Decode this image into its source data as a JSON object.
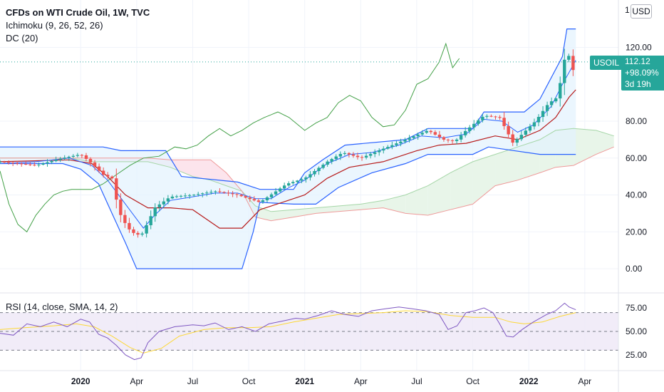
{
  "legend": {
    "title": "CFDs on WTI Crude Oil, 1W, TVC",
    "ichimoku": "Ichimoku (9, 26, 52, 26)",
    "donchian": "DC (20)",
    "rsi": "RSI (14, close, SMA, 14, 2)"
  },
  "price_scale": {
    "currency": "USD",
    "truncated_top": "1"
  },
  "last_price": {
    "symbol": "USOIL",
    "price": "112.12",
    "change": "+98.09%",
    "countdown": "3d 19h"
  },
  "colors": {
    "up": "#26a69a",
    "down": "#ef5350",
    "donchian": "#2962ff",
    "donchian_fill": "#e3f2fd",
    "tenkan": "#2962ff",
    "kijun": "#b71c1c",
    "chikou": "#43a047",
    "span_a": "#a5d6a7",
    "span_b": "#ef9a9a",
    "cloud_green": "#e8f5e9",
    "cloud_red": "#fce4ec",
    "rsi_line": "#7e57c2",
    "rsi_sma": "#fdd835",
    "rsi_band": "#ede7f6"
  },
  "chart_data": [
    {
      "type": "candlestick",
      "title": "CFDs on WTI Crude Oil, 1W, TVC",
      "ylim": [
        -8,
        137
      ],
      "yticks": [
        "0.00",
        "20.00",
        "40.00",
        "60.00",
        "80.00",
        "120.00"
      ],
      "xticks": [
        {
          "label": "2020",
          "t": 2020.0,
          "bold": true
        },
        {
          "label": "Apr",
          "t": 2020.25,
          "bold": false
        },
        {
          "label": "Jul",
          "t": 2020.5,
          "bold": false
        },
        {
          "label": "Oct",
          "t": 2020.75,
          "bold": false
        },
        {
          "label": "2021",
          "t": 2021.0,
          "bold": true
        },
        {
          "label": "Apr",
          "t": 2021.25,
          "bold": false
        },
        {
          "label": "Jul",
          "t": 2021.5,
          "bold": false
        },
        {
          "label": "Oct",
          "t": 2021.75,
          "bold": false
        },
        {
          "label": "2022",
          "t": 2022.0,
          "bold": true
        },
        {
          "label": "Apr",
          "t": 2022.25,
          "bold": false
        }
      ],
      "xlim": [
        2019.64,
        2022.4
      ],
      "price_line": 112.12,
      "close_anchors": [
        [
          2019.64,
          58
        ],
        [
          2019.8,
          56
        ],
        [
          2019.92,
          60
        ],
        [
          2020.0,
          62
        ],
        [
          2020.05,
          57
        ],
        [
          2020.1,
          51
        ],
        [
          2020.14,
          49
        ],
        [
          2020.17,
          31
        ],
        [
          2020.21,
          22
        ],
        [
          2020.24,
          19
        ],
        [
          2020.27,
          18
        ],
        [
          2020.3,
          25
        ],
        [
          2020.33,
          33
        ],
        [
          2020.4,
          39
        ],
        [
          2020.5,
          40
        ],
        [
          2020.6,
          42
        ],
        [
          2020.7,
          40
        ],
        [
          2020.75,
          38
        ],
        [
          2020.8,
          36
        ],
        [
          2020.86,
          41
        ],
        [
          2020.92,
          46
        ],
        [
          2021.0,
          49
        ],
        [
          2021.1,
          58
        ],
        [
          2021.17,
          63
        ],
        [
          2021.25,
          60
        ],
        [
          2021.35,
          65
        ],
        [
          2021.45,
          70
        ],
        [
          2021.55,
          75
        ],
        [
          2021.62,
          70
        ],
        [
          2021.67,
          69
        ],
        [
          2021.72,
          75
        ],
        [
          2021.8,
          83
        ],
        [
          2021.87,
          82
        ],
        [
          2021.9,
          75
        ],
        [
          2021.93,
          68
        ],
        [
          2021.97,
          73
        ],
        [
          2022.03,
          80
        ],
        [
          2022.09,
          90
        ],
        [
          2022.12,
          92
        ],
        [
          2022.15,
          105
        ],
        [
          2022.17,
          123
        ],
        [
          2022.19,
          105
        ],
        [
          2022.21,
          112.12
        ]
      ],
      "donchian_upper": [
        [
          2019.64,
          66
        ],
        [
          2019.92,
          66
        ],
        [
          2020.0,
          66
        ],
        [
          2020.1,
          66
        ],
        [
          2020.18,
          64
        ],
        [
          2020.38,
          64
        ],
        [
          2020.45,
          50
        ],
        [
          2020.7,
          47
        ],
        [
          2020.8,
          43
        ],
        [
          2020.95,
          43
        ],
        [
          2021.0,
          52
        ],
        [
          2021.08,
          59
        ],
        [
          2021.18,
          67
        ],
        [
          2021.45,
          70
        ],
        [
          2021.55,
          76
        ],
        [
          2021.75,
          76
        ],
        [
          2021.8,
          85
        ],
        [
          2021.98,
          85
        ],
        [
          2022.05,
          92
        ],
        [
          2022.15,
          115
        ],
        [
          2022.17,
          130
        ],
        [
          2022.21,
          130
        ]
      ],
      "donchian_lower": [
        [
          2019.64,
          57
        ],
        [
          2019.92,
          57
        ],
        [
          2020.0,
          54
        ],
        [
          2020.08,
          46
        ],
        [
          2020.14,
          30
        ],
        [
          2020.2,
          14
        ],
        [
          2020.25,
          0
        ],
        [
          2020.72,
          0
        ],
        [
          2020.77,
          20
        ],
        [
          2020.8,
          36
        ],
        [
          2020.95,
          35
        ],
        [
          2021.05,
          35
        ],
        [
          2021.15,
          44
        ],
        [
          2021.3,
          52
        ],
        [
          2021.45,
          57
        ],
        [
          2021.55,
          62
        ],
        [
          2021.75,
          62
        ],
        [
          2021.82,
          66
        ],
        [
          2022.05,
          62
        ],
        [
          2022.21,
          62
        ]
      ],
      "tenkan": [
        [
          2019.64,
          57
        ],
        [
          2019.8,
          58
        ],
        [
          2019.95,
          60
        ],
        [
          2020.05,
          56
        ],
        [
          2020.12,
          48
        ],
        [
          2020.2,
          35
        ],
        [
          2020.28,
          22
        ],
        [
          2020.33,
          29
        ],
        [
          2020.4,
          37
        ],
        [
          2020.5,
          39
        ],
        [
          2020.6,
          41
        ],
        [
          2020.7,
          41
        ],
        [
          2020.78,
          38
        ],
        [
          2020.85,
          38
        ],
        [
          2020.93,
          44
        ],
        [
          2021.0,
          48
        ],
        [
          2021.1,
          57
        ],
        [
          2021.2,
          62
        ],
        [
          2021.3,
          63
        ],
        [
          2021.42,
          67
        ],
        [
          2021.52,
          72
        ],
        [
          2021.62,
          71
        ],
        [
          2021.72,
          73
        ],
        [
          2021.8,
          81
        ],
        [
          2021.88,
          80
        ],
        [
          2021.95,
          74
        ],
        [
          2022.02,
          78
        ],
        [
          2022.1,
          88
        ],
        [
          2022.15,
          100
        ],
        [
          2022.21,
          113
        ]
      ],
      "kijun": [
        [
          2019.64,
          58
        ],
        [
          2019.95,
          59
        ],
        [
          2020.05,
          57
        ],
        [
          2020.12,
          50
        ],
        [
          2020.2,
          40
        ],
        [
          2020.3,
          33
        ],
        [
          2020.4,
          33
        ],
        [
          2020.5,
          32
        ],
        [
          2020.62,
          22
        ],
        [
          2020.72,
          22
        ],
        [
          2020.8,
          32
        ],
        [
          2020.9,
          36
        ],
        [
          2021.0,
          40
        ],
        [
          2021.1,
          49
        ],
        [
          2021.2,
          55
        ],
        [
          2021.35,
          58
        ],
        [
          2021.5,
          64
        ],
        [
          2021.6,
          67
        ],
        [
          2021.72,
          68
        ],
        [
          2021.85,
          72
        ],
        [
          2021.95,
          70
        ],
        [
          2022.05,
          75
        ],
        [
          2022.12,
          82
        ],
        [
          2022.18,
          93
        ],
        [
          2022.21,
          97
        ]
      ],
      "chikou": [
        [
          2019.64,
          53
        ],
        [
          2019.68,
          35
        ],
        [
          2019.72,
          24
        ],
        [
          2019.76,
          20
        ],
        [
          2019.8,
          29
        ],
        [
          2019.84,
          35
        ],
        [
          2019.88,
          40
        ],
        [
          2019.92,
          42
        ],
        [
          2019.96,
          43
        ],
        [
          2020.0,
          43
        ],
        [
          2020.05,
          43
        ],
        [
          2020.1,
          46
        ],
        [
          2020.16,
          51
        ],
        [
          2020.22,
          56
        ],
        [
          2020.28,
          60
        ],
        [
          2020.35,
          61
        ],
        [
          2020.42,
          66
        ],
        [
          2020.47,
          65
        ],
        [
          2020.52,
          67
        ],
        [
          2020.57,
          72
        ],
        [
          2020.62,
          76
        ],
        [
          2020.67,
          72
        ],
        [
          2020.72,
          75
        ],
        [
          2020.77,
          79
        ],
        [
          2020.82,
          82
        ],
        [
          2020.88,
          85
        ],
        [
          2020.93,
          82
        ],
        [
          2021.0,
          75
        ],
        [
          2021.05,
          79
        ],
        [
          2021.1,
          82
        ],
        [
          2021.15,
          90
        ],
        [
          2021.2,
          94
        ],
        [
          2021.25,
          91
        ],
        [
          2021.3,
          82
        ],
        [
          2021.35,
          77
        ],
        [
          2021.4,
          78
        ],
        [
          2021.45,
          86
        ],
        [
          2021.5,
          100
        ],
        [
          2021.55,
          103
        ],
        [
          2021.6,
          112
        ],
        [
          2021.63,
          122
        ],
        [
          2021.66,
          109
        ],
        [
          2021.69,
          114
        ]
      ],
      "span_a": [
        [
          2019.64,
          60
        ],
        [
          2019.8,
          60
        ],
        [
          2019.95,
          60
        ],
        [
          2020.05,
          58
        ],
        [
          2020.18,
          58
        ],
        [
          2020.3,
          58
        ],
        [
          2020.4,
          55
        ],
        [
          2020.5,
          50
        ],
        [
          2020.58,
          48
        ],
        [
          2020.65,
          45
        ],
        [
          2020.72,
          42
        ],
        [
          2020.78,
          34
        ],
        [
          2020.85,
          31
        ],
        [
          2020.95,
          32
        ],
        [
          2021.05,
          33
        ],
        [
          2021.15,
          34
        ],
        [
          2021.25,
          35
        ],
        [
          2021.35,
          37
        ],
        [
          2021.45,
          40
        ],
        [
          2021.55,
          45
        ],
        [
          2021.65,
          52
        ],
        [
          2021.75,
          58
        ],
        [
          2021.85,
          62
        ],
        [
          2021.95,
          66
        ],
        [
          2022.05,
          70
        ],
        [
          2022.12,
          75
        ],
        [
          2022.2,
          76
        ],
        [
          2022.3,
          75
        ],
        [
          2022.38,
          72
        ]
      ],
      "span_b": [
        [
          2019.64,
          60
        ],
        [
          2019.8,
          60
        ],
        [
          2019.95,
          60
        ],
        [
          2020.05,
          60
        ],
        [
          2020.18,
          60
        ],
        [
          2020.3,
          60
        ],
        [
          2020.4,
          59
        ],
        [
          2020.5,
          59
        ],
        [
          2020.58,
          59
        ],
        [
          2020.65,
          52
        ],
        [
          2020.72,
          42
        ],
        [
          2020.78,
          28
        ],
        [
          2020.85,
          26
        ],
        [
          2020.95,
          28
        ],
        [
          2021.05,
          30
        ],
        [
          2021.15,
          31
        ],
        [
          2021.25,
          32
        ],
        [
          2021.35,
          33
        ],
        [
          2021.45,
          30
        ],
        [
          2021.55,
          29
        ],
        [
          2021.65,
          32
        ],
        [
          2021.75,
          35
        ],
        [
          2021.85,
          45
        ],
        [
          2021.95,
          48
        ],
        [
          2022.05,
          52
        ],
        [
          2022.12,
          55
        ],
        [
          2022.2,
          56
        ],
        [
          2022.3,
          62
        ],
        [
          2022.38,
          66
        ]
      ]
    },
    {
      "type": "line",
      "title": "RSI (14, close, SMA, 14, 2)",
      "ylim": [
        12,
        88
      ],
      "yticks": [
        "25.00",
        "50.00",
        "75.00"
      ],
      "bands": [
        30,
        50,
        70
      ],
      "rsi": [
        [
          2019.64,
          48
        ],
        [
          2019.7,
          46
        ],
        [
          2019.76,
          58
        ],
        [
          2019.82,
          55
        ],
        [
          2019.88,
          60
        ],
        [
          2019.94,
          55
        ],
        [
          2020.0,
          63
        ],
        [
          2020.04,
          60
        ],
        [
          2020.08,
          47
        ],
        [
          2020.12,
          43
        ],
        [
          2020.16,
          35
        ],
        [
          2020.2,
          25
        ],
        [
          2020.24,
          20
        ],
        [
          2020.27,
          22
        ],
        [
          2020.3,
          38
        ],
        [
          2020.35,
          50
        ],
        [
          2020.42,
          55
        ],
        [
          2020.5,
          57
        ],
        [
          2020.55,
          56
        ],
        [
          2020.6,
          59
        ],
        [
          2020.66,
          52
        ],
        [
          2020.72,
          55
        ],
        [
          2020.78,
          50
        ],
        [
          2020.84,
          58
        ],
        [
          2020.9,
          61
        ],
        [
          2020.96,
          64
        ],
        [
          2021.0,
          63
        ],
        [
          2021.06,
          67
        ],
        [
          2021.12,
          72
        ],
        [
          2021.18,
          68
        ],
        [
          2021.24,
          66
        ],
        [
          2021.3,
          72
        ],
        [
          2021.36,
          74
        ],
        [
          2021.42,
          76
        ],
        [
          2021.48,
          74
        ],
        [
          2021.54,
          72
        ],
        [
          2021.6,
          68
        ],
        [
          2021.64,
          52
        ],
        [
          2021.68,
          56
        ],
        [
          2021.72,
          70
        ],
        [
          2021.76,
          72
        ],
        [
          2021.8,
          75
        ],
        [
          2021.84,
          70
        ],
        [
          2021.87,
          58
        ],
        [
          2021.9,
          45
        ],
        [
          2021.93,
          44
        ],
        [
          2021.97,
          52
        ],
        [
          2022.02,
          60
        ],
        [
          2022.08,
          68
        ],
        [
          2022.12,
          72
        ],
        [
          2022.16,
          80
        ],
        [
          2022.18,
          76
        ],
        [
          2022.21,
          73
        ]
      ],
      "sma": [
        [
          2019.64,
          52
        ],
        [
          2019.75,
          54
        ],
        [
          2019.88,
          56
        ],
        [
          2019.98,
          58
        ],
        [
          2020.06,
          55
        ],
        [
          2020.14,
          45
        ],
        [
          2020.22,
          33
        ],
        [
          2020.28,
          27
        ],
        [
          2020.36,
          32
        ],
        [
          2020.44,
          45
        ],
        [
          2020.55,
          52
        ],
        [
          2020.65,
          54
        ],
        [
          2020.75,
          54
        ],
        [
          2020.85,
          55
        ],
        [
          2020.95,
          60
        ],
        [
          2021.05,
          64
        ],
        [
          2021.15,
          68
        ],
        [
          2021.25,
          69
        ],
        [
          2021.35,
          70
        ],
        [
          2021.45,
          72
        ],
        [
          2021.55,
          71
        ],
        [
          2021.65,
          67
        ],
        [
          2021.75,
          65
        ],
        [
          2021.85,
          65
        ],
        [
          2021.92,
          60
        ],
        [
          2021.98,
          58
        ],
        [
          2022.06,
          60
        ],
        [
          2022.14,
          66
        ],
        [
          2022.21,
          70
        ]
      ]
    }
  ]
}
